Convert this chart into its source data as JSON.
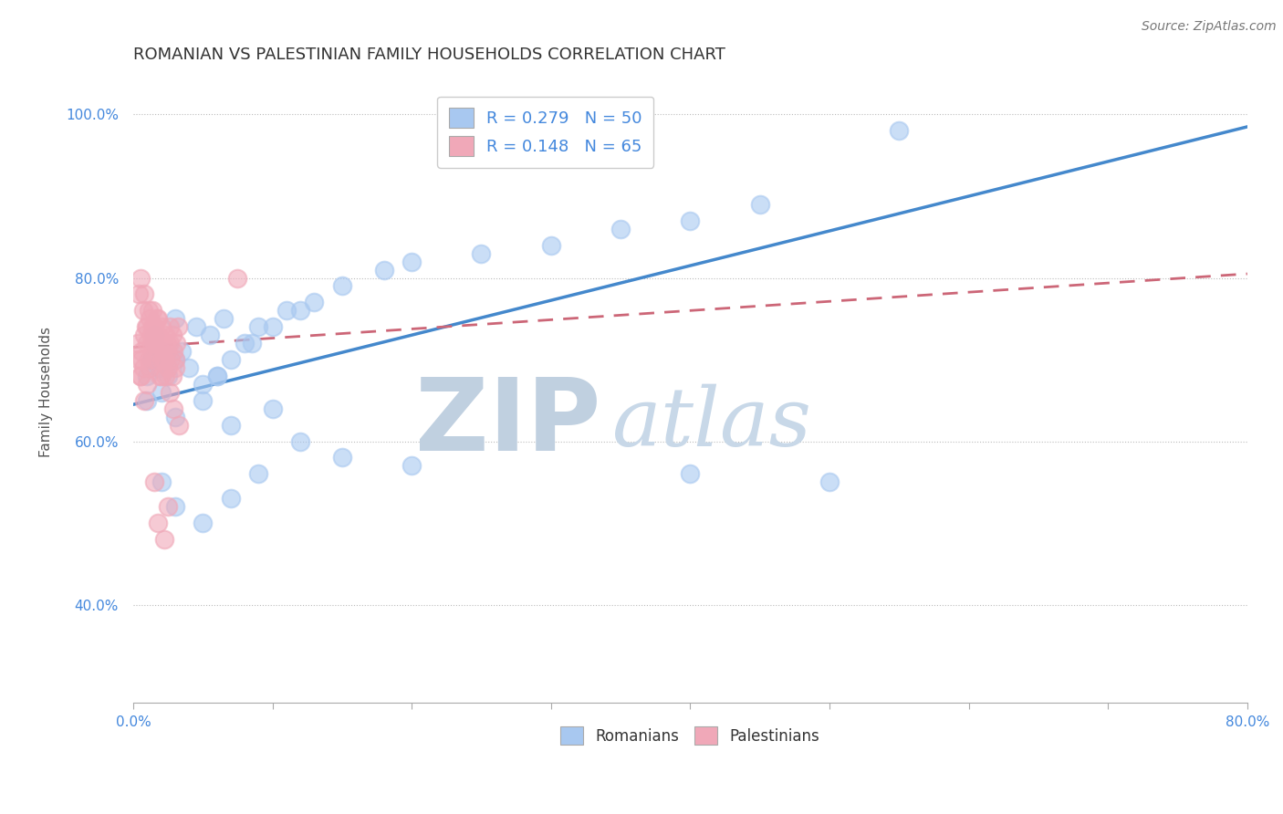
{
  "title": "ROMANIAN VS PALESTINIAN FAMILY HOUSEHOLDS CORRELATION CHART",
  "source": "Source: ZipAtlas.com",
  "ylabel_label": "Family Households",
  "xlim": [
    0.0,
    80.0
  ],
  "ylim": [
    28.0,
    104.0
  ],
  "yticks": [
    40.0,
    60.0,
    80.0,
    100.0
  ],
  "xticks": [
    0.0,
    10.0,
    20.0,
    30.0,
    40.0,
    50.0,
    60.0,
    70.0,
    80.0
  ],
  "r_romanian": 0.279,
  "n_romanian": 50,
  "r_palestinian": 0.148,
  "n_palestinian": 65,
  "color_romanian": "#a8c8f0",
  "color_palestinian": "#f0a8b8",
  "color_line_romanian": "#4488cc",
  "color_line_palestinian": "#cc6677",
  "watermark_zip": "ZIP",
  "watermark_atlas": "atlas",
  "watermark_color_zip": "#c0d0e0",
  "watermark_color_atlas": "#c8d8e8",
  "legend_r_color": "#4488dd",
  "title_color": "#333333",
  "title_fontsize": 13,
  "reg_rom_x0": 0.0,
  "reg_rom_y0": 64.5,
  "reg_rom_x1": 80.0,
  "reg_rom_y1": 98.5,
  "reg_pal_x0": 0.0,
  "reg_pal_y0": 71.5,
  "reg_pal_x1": 80.0,
  "reg_pal_y1": 80.5,
  "romanian_x": [
    1.0,
    1.3,
    1.8,
    2.0,
    1.5,
    1.0,
    2.5,
    3.0,
    2.0,
    1.5,
    3.5,
    4.0,
    5.0,
    6.0,
    7.0,
    3.0,
    4.5,
    5.5,
    6.5,
    8.0,
    9.0,
    11.0,
    13.0,
    6.0,
    8.5,
    10.0,
    12.0,
    15.0,
    18.0,
    20.0,
    25.0,
    30.0,
    35.0,
    40.0,
    45.0,
    55.0,
    2.0,
    3.0,
    5.0,
    7.0,
    9.0,
    3.0,
    5.0,
    7.0,
    10.0,
    12.0,
    15.0,
    20.0,
    40.0,
    50.0
  ],
  "romanian_y": [
    68.0,
    70.0,
    69.0,
    71.0,
    72.0,
    65.0,
    68.0,
    70.0,
    66.0,
    73.0,
    71.0,
    69.0,
    67.0,
    68.0,
    70.0,
    75.0,
    74.0,
    73.0,
    75.0,
    72.0,
    74.0,
    76.0,
    77.0,
    68.0,
    72.0,
    74.0,
    76.0,
    79.0,
    81.0,
    82.0,
    83.0,
    84.0,
    86.0,
    87.0,
    89.0,
    98.0,
    55.0,
    52.0,
    50.0,
    53.0,
    56.0,
    63.0,
    65.0,
    62.0,
    64.0,
    60.0,
    58.0,
    57.0,
    56.0,
    55.0
  ],
  "palestinian_x": [
    0.3,
    0.4,
    0.5,
    0.6,
    0.7,
    0.8,
    0.9,
    1.0,
    1.1,
    1.2,
    1.3,
    1.4,
    1.5,
    1.6,
    1.7,
    1.8,
    1.9,
    2.0,
    2.1,
    2.2,
    2.3,
    2.4,
    2.5,
    2.6,
    2.7,
    2.8,
    2.9,
    3.0,
    3.1,
    3.2,
    0.5,
    0.6,
    0.8,
    1.0,
    1.2,
    1.4,
    1.6,
    1.8,
    2.0,
    2.2,
    2.4,
    2.6,
    2.8,
    3.0,
    0.4,
    0.7,
    1.0,
    1.3,
    1.6,
    1.9,
    0.5,
    0.8,
    1.1,
    1.4,
    1.7,
    2.0,
    2.3,
    2.6,
    2.9,
    3.3,
    7.5,
    1.5,
    2.5,
    1.8,
    2.2
  ],
  "palestinian_y": [
    72.0,
    70.0,
    68.0,
    71.0,
    69.0,
    73.0,
    74.0,
    72.0,
    70.0,
    75.0,
    73.0,
    76.0,
    74.0,
    72.0,
    75.0,
    73.0,
    71.0,
    74.0,
    72.0,
    70.0,
    73.0,
    71.0,
    69.0,
    72.0,
    70.0,
    73.0,
    71.0,
    69.0,
    72.0,
    74.0,
    68.0,
    70.0,
    65.0,
    67.0,
    69.0,
    71.0,
    73.0,
    75.0,
    68.0,
    70.0,
    72.0,
    74.0,
    68.0,
    70.0,
    78.0,
    76.0,
    74.0,
    72.0,
    70.0,
    68.0,
    80.0,
    78.0,
    76.0,
    74.0,
    72.0,
    70.0,
    68.0,
    66.0,
    64.0,
    62.0,
    80.0,
    55.0,
    52.0,
    50.0,
    48.0
  ]
}
